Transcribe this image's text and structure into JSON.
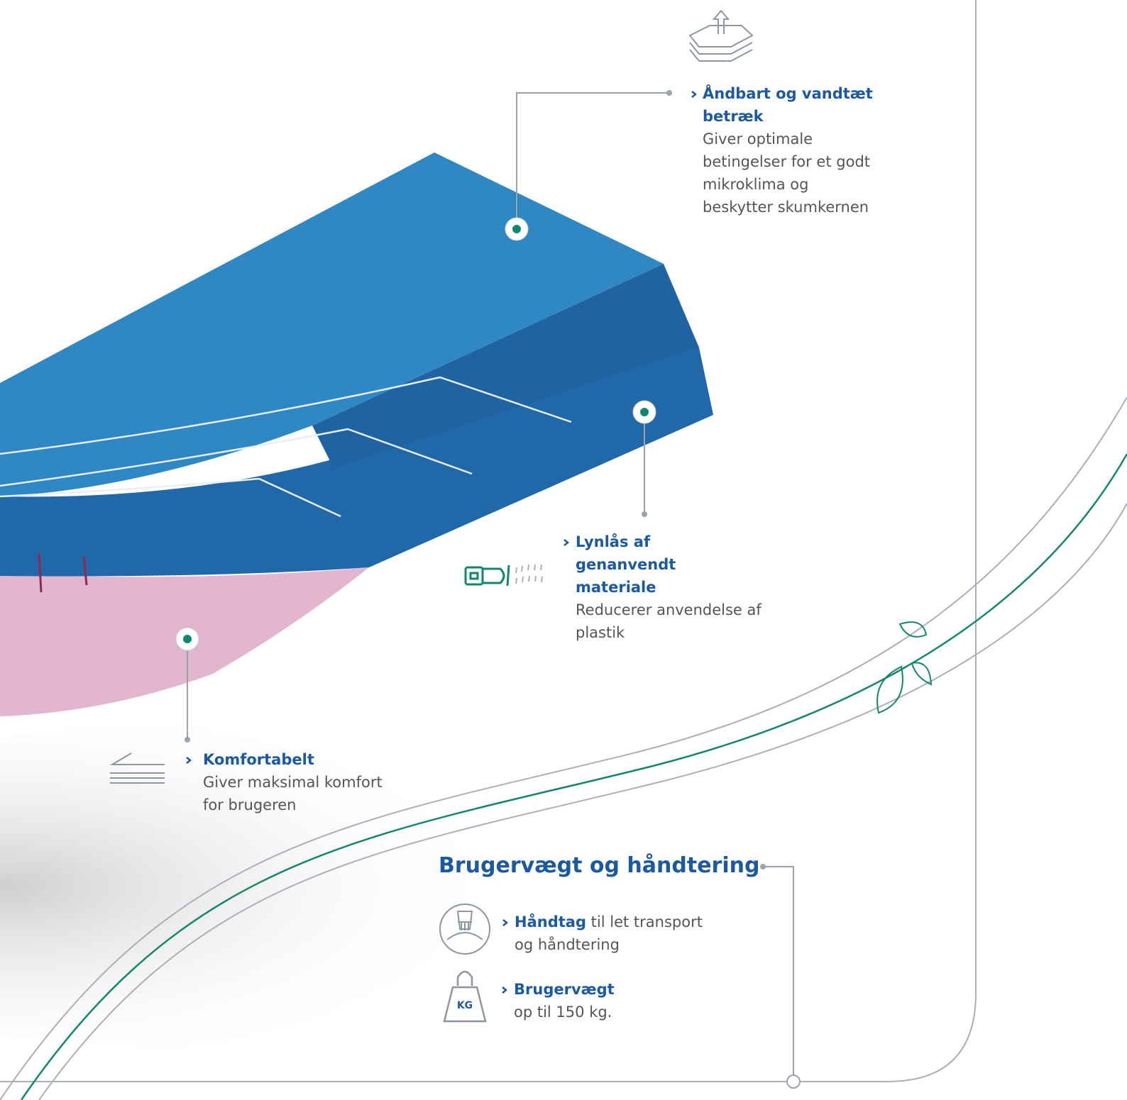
{
  "features": [
    {
      "title": "Åndbart og vandtæt betræk",
      "body": "Giver optimale betingelser for et godt mikroklima og beskytter skumkernen"
    },
    {
      "title": "Lynlås af genanvendt materiale",
      "body": "Reducerer anvendelse af plastik"
    },
    {
      "title": "Komfortabelt",
      "body": "Giver maksimal komfort for brugeren"
    }
  ],
  "section": {
    "title": "Brugervægt og håndtering",
    "items": [
      {
        "bold": "Håndtag",
        "text": "til let transport og håndtering"
      },
      {
        "bold": "Brugervægt",
        "text": "op til 150 kg."
      }
    ],
    "weight_icon": "KG"
  }
}
